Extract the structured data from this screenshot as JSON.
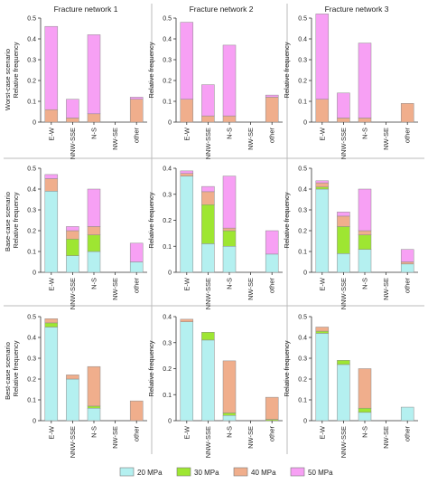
{
  "colors": {
    "20 MPa": "#b4f0f0",
    "30 MPa": "#9ee632",
    "40 MPa": "#f0ae8c",
    "50 MPa": "#f7a0f4"
  },
  "legend": [
    "20 MPa",
    "30 MPa",
    "40 MPa",
    "50 MPa"
  ],
  "column_titles": [
    "Fracture network 1",
    "Fracture network 2",
    "Fracture network 3"
  ],
  "row_titles": [
    "Worst-case scenario",
    "Base-case scenario",
    "Best-case scenario"
  ],
  "ylabel": "Relative frequency",
  "categories": [
    "E-W",
    "NNW-SSE",
    "N-S",
    "NW-SE",
    "other"
  ],
  "chart_data": [
    {
      "type": "bar",
      "stacked": true,
      "row": "Worst-case scenario",
      "column": "Fracture network 1",
      "categories": [
        "E-W",
        "NNW-SSE",
        "N-S",
        "NW-SE",
        "other"
      ],
      "ylim": [
        0,
        0.5
      ],
      "yticks": [
        0,
        0.1,
        0.2,
        0.3,
        0.4,
        0.5
      ],
      "ylabel": "Relative frequency",
      "series": [
        {
          "name": "20 MPa",
          "values": [
            0,
            0,
            0,
            0,
            0
          ]
        },
        {
          "name": "30 MPa",
          "values": [
            0,
            0,
            0,
            0,
            0
          ]
        },
        {
          "name": "40 MPa",
          "values": [
            0.06,
            0.02,
            0.04,
            0,
            0.11
          ]
        },
        {
          "name": "50 MPa",
          "values": [
            0.4,
            0.09,
            0.38,
            0,
            0.01
          ]
        }
      ]
    },
    {
      "type": "bar",
      "stacked": true,
      "row": "Worst-case scenario",
      "column": "Fracture network 2",
      "categories": [
        "E-W",
        "NNW-SSE",
        "N-S",
        "NW-SE",
        "other"
      ],
      "ylim": [
        0,
        0.5
      ],
      "yticks": [
        0,
        0.1,
        0.2,
        0.3,
        0.4,
        0.5
      ],
      "ylabel": "Relative frequency",
      "series": [
        {
          "name": "20 MPa",
          "values": [
            0,
            0,
            0,
            0,
            0
          ]
        },
        {
          "name": "30 MPa",
          "values": [
            0,
            0,
            0,
            0,
            0
          ]
        },
        {
          "name": "40 MPa",
          "values": [
            0.11,
            0.03,
            0.03,
            0,
            0.12
          ]
        },
        {
          "name": "50 MPa",
          "values": [
            0.37,
            0.15,
            0.34,
            0,
            0.01
          ]
        }
      ]
    },
    {
      "type": "bar",
      "stacked": true,
      "row": "Worst-case scenario",
      "column": "Fracture network 3",
      "categories": [
        "E-W",
        "NNW-SSE",
        "N-S",
        "NW-SE",
        "other"
      ],
      "ylim": [
        0,
        0.5
      ],
      "yticks": [
        0,
        0.1,
        0.2,
        0.3,
        0.4,
        0.5
      ],
      "ylabel": "Relative frequency",
      "series": [
        {
          "name": "20 MPa",
          "values": [
            0,
            0,
            0,
            0,
            0
          ]
        },
        {
          "name": "30 MPa",
          "values": [
            0,
            0,
            0,
            0,
            0
          ]
        },
        {
          "name": "40 MPa",
          "values": [
            0.11,
            0.02,
            0.02,
            0,
            0.09
          ]
        },
        {
          "name": "50 MPa",
          "values": [
            0.41,
            0.12,
            0.36,
            0,
            0
          ]
        }
      ]
    },
    {
      "type": "bar",
      "stacked": true,
      "row": "Base-case scenario",
      "column": "Fracture network 1",
      "categories": [
        "E-W",
        "NNW-SSE",
        "N-S",
        "NW-SE",
        "other"
      ],
      "ylim": [
        0,
        0.5
      ],
      "yticks": [
        0,
        0.1,
        0.2,
        0.3,
        0.4,
        0.5
      ],
      "ylabel": "Relative frequency",
      "series": [
        {
          "name": "20 MPa",
          "values": [
            0.39,
            0.08,
            0.1,
            0,
            0.05
          ]
        },
        {
          "name": "30 MPa",
          "values": [
            0,
            0.08,
            0.08,
            0,
            0
          ]
        },
        {
          "name": "40 MPa",
          "values": [
            0.06,
            0.04,
            0.04,
            0,
            0
          ]
        },
        {
          "name": "50 MPa",
          "values": [
            0.02,
            0.02,
            0.18,
            0,
            0.09
          ]
        }
      ]
    },
    {
      "type": "bar",
      "stacked": true,
      "row": "Base-case scenario",
      "column": "Fracture network 2",
      "categories": [
        "E-W",
        "NNW-SSE",
        "N-S",
        "NW-SE",
        "other"
      ],
      "ylim": [
        0,
        0.4
      ],
      "yticks": [
        0,
        0.1,
        0.2,
        0.3,
        0.4
      ],
      "ylabel": "Relative frequency",
      "series": [
        {
          "name": "20 MPa",
          "values": [
            0.37,
            0.11,
            0.1,
            0,
            0.07
          ]
        },
        {
          "name": "30 MPa",
          "values": [
            0,
            0.15,
            0.06,
            0,
            0
          ]
        },
        {
          "name": "40 MPa",
          "values": [
            0.01,
            0.05,
            0.01,
            0,
            0
          ]
        },
        {
          "name": "50 MPa",
          "values": [
            0.01,
            0.02,
            0.2,
            0,
            0.09
          ]
        }
      ]
    },
    {
      "type": "bar",
      "stacked": true,
      "row": "Base-case scenario",
      "column": "Fracture network 3",
      "categories": [
        "E-W",
        "NNW-SSE",
        "N-S",
        "NW-SE",
        "other"
      ],
      "ylim": [
        0,
        0.5
      ],
      "yticks": [
        0,
        0.1,
        0.2,
        0.3,
        0.4,
        0.5
      ],
      "ylabel": "Relative frequency",
      "series": [
        {
          "name": "20 MPa",
          "values": [
            0.4,
            0.09,
            0.11,
            0,
            0.04
          ]
        },
        {
          "name": "30 MPa",
          "values": [
            0.01,
            0.13,
            0.07,
            0,
            0
          ]
        },
        {
          "name": "40 MPa",
          "values": [
            0.02,
            0.05,
            0.02,
            0,
            0.01
          ]
        },
        {
          "name": "50 MPa",
          "values": [
            0.01,
            0.02,
            0.2,
            0,
            0.06
          ]
        }
      ]
    },
    {
      "type": "bar",
      "stacked": true,
      "row": "Best-case scenario",
      "column": "Fracture network 1",
      "categories": [
        "E-W",
        "NNW-SSE",
        "N-S",
        "NW-SE",
        "other"
      ],
      "ylim": [
        0,
        0.5
      ],
      "yticks": [
        0,
        0.1,
        0.2,
        0.3,
        0.4,
        0.5
      ],
      "ylabel": "Relative frequency",
      "series": [
        {
          "name": "20 MPa",
          "values": [
            0.45,
            0.2,
            0.06,
            0,
            0
          ]
        },
        {
          "name": "30 MPa",
          "values": [
            0.02,
            0,
            0.01,
            0,
            0
          ]
        },
        {
          "name": "40 MPa",
          "values": [
            0.02,
            0.02,
            0.19,
            0,
            0.095
          ]
        },
        {
          "name": "50 MPa",
          "values": [
            0,
            0,
            0,
            0,
            0
          ]
        }
      ]
    },
    {
      "type": "bar",
      "stacked": true,
      "row": "Best-case scenario",
      "column": "Fracture network 2",
      "categories": [
        "E-W",
        "NNW-SSE",
        "N-S",
        "NW-SE",
        "other"
      ],
      "ylim": [
        0,
        0.4
      ],
      "yticks": [
        0,
        0.1,
        0.2,
        0.3,
        0.4
      ],
      "ylabel": "Relative frequency",
      "series": [
        {
          "name": "20 MPa",
          "values": [
            0.38,
            0.31,
            0.02,
            0,
            0
          ]
        },
        {
          "name": "30 MPa",
          "values": [
            0,
            0.03,
            0.01,
            0,
            0.005
          ]
        },
        {
          "name": "40 MPa",
          "values": [
            0.01,
            0,
            0.2,
            0,
            0.085
          ]
        },
        {
          "name": "50 MPa",
          "values": [
            0,
            0,
            0,
            0,
            0
          ]
        }
      ]
    },
    {
      "type": "bar",
      "stacked": true,
      "row": "Best-case scenario",
      "column": "Fracture network 3",
      "categories": [
        "E-W",
        "NNW-SSE",
        "N-S",
        "NW-SE",
        "other"
      ],
      "ylim": [
        0,
        0.5
      ],
      "yticks": [
        0,
        0.1,
        0.2,
        0.3,
        0.4,
        0.5
      ],
      "ylabel": "Relative frequency",
      "series": [
        {
          "name": "20 MPa",
          "values": [
            0.42,
            0.27,
            0.04,
            0,
            0.065
          ]
        },
        {
          "name": "30 MPa",
          "values": [
            0.01,
            0.02,
            0.02,
            0,
            0
          ]
        },
        {
          "name": "40 MPa",
          "values": [
            0.02,
            0,
            0.19,
            0,
            0
          ]
        },
        {
          "name": "50 MPa",
          "values": [
            0,
            0,
            0,
            0,
            0
          ]
        }
      ]
    }
  ]
}
